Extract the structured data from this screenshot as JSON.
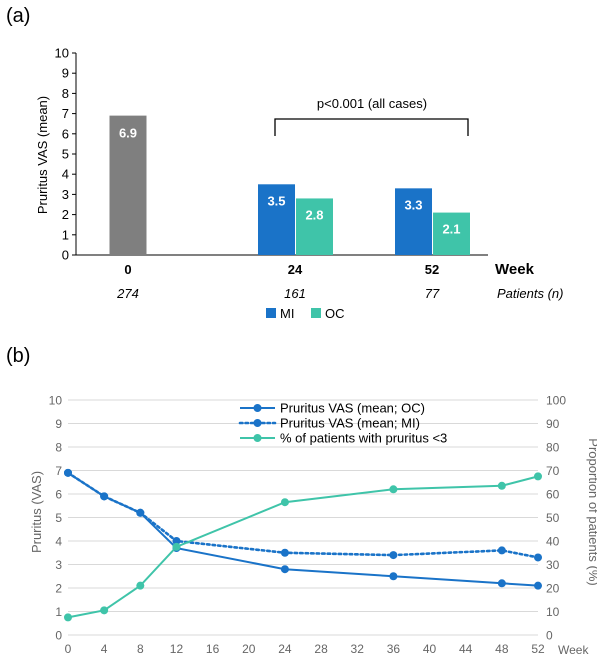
{
  "chart_data": [
    {
      "type": "bar",
      "panel_label": "(a)",
      "ylabel": "Pruritus VAS (mean)",
      "ylim": [
        0,
        10
      ],
      "yticks": [
        0,
        1,
        2,
        3,
        4,
        5,
        6,
        7,
        8,
        9,
        10
      ],
      "categories": [
        "0",
        "24",
        "52"
      ],
      "patients": [
        "274",
        "161",
        "77"
      ],
      "week_label": "Week",
      "patients_label": "Patients (n)",
      "baseline": {
        "values": [
          6.9,
          null,
          null
        ],
        "labels": [
          "6.9",
          "",
          ""
        ],
        "color": "#7f7f7f"
      },
      "series": [
        {
          "name": "MI",
          "values": [
            null,
            3.5,
            3.3
          ],
          "labels": [
            "",
            "3.5",
            "3.3"
          ],
          "color": "#1a73c8"
        },
        {
          "name": "OC",
          "values": [
            null,
            2.8,
            2.1
          ],
          "labels": [
            "",
            "2.8",
            "2.1"
          ],
          "color": "#3fc4a9"
        }
      ],
      "annotation": "p<0.001 (all cases)",
      "grid": false,
      "legend": "bottom"
    },
    {
      "type": "line",
      "panel_label": "(b)",
      "xlabel": "Week",
      "ylabel": "Pruritus (VAS)",
      "y2label": "Proportion of patients (%)",
      "xlim": [
        0,
        52
      ],
      "xticks": [
        0,
        4,
        8,
        12,
        16,
        20,
        24,
        28,
        32,
        36,
        40,
        44,
        48,
        52
      ],
      "ylim": [
        0,
        10
      ],
      "yticks": [
        0,
        1,
        2,
        3,
        4,
        5,
        6,
        7,
        8,
        9,
        10
      ],
      "y2lim": [
        0,
        100
      ],
      "y2ticks": [
        0,
        10,
        20,
        30,
        40,
        50,
        60,
        70,
        80,
        90,
        100
      ],
      "grid": true,
      "legend": "top-center",
      "series": [
        {
          "name": "Pruritus VAS (mean; OC)",
          "axis": "left",
          "style": "solid",
          "color": "#1a73c8",
          "x": [
            0,
            4,
            8,
            12,
            24,
            36,
            48,
            52
          ],
          "y": [
            6.9,
            5.9,
            5.2,
            3.7,
            2.8,
            2.5,
            2.2,
            2.1
          ]
        },
        {
          "name": "Pruritus VAS (mean; MI)",
          "axis": "left",
          "style": "dotted",
          "color": "#1a73c8",
          "x": [
            0,
            4,
            8,
            12,
            24,
            36,
            48,
            52
          ],
          "y": [
            6.9,
            5.9,
            5.2,
            4.0,
            3.5,
            3.4,
            3.6,
            3.3
          ]
        },
        {
          "name": "% of patients with pruritus <3",
          "axis": "right",
          "style": "solid",
          "color": "#3fc4a9",
          "x": [
            0,
            4,
            8,
            12,
            24,
            36,
            48,
            52
          ],
          "y": [
            7.5,
            10.5,
            21,
            37.5,
            56.5,
            62,
            63.5,
            67.5
          ]
        }
      ]
    }
  ]
}
